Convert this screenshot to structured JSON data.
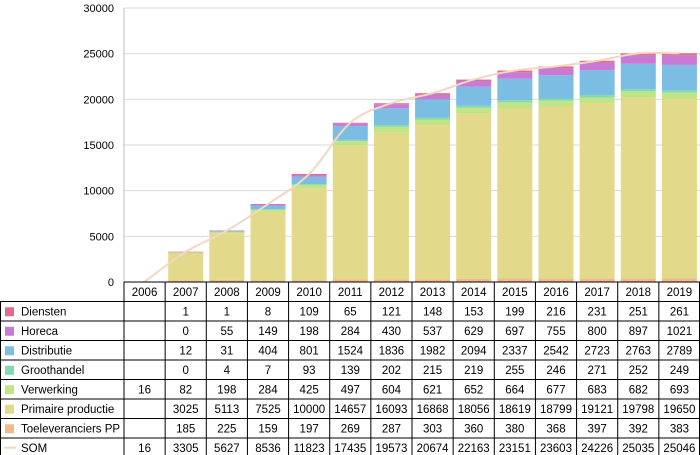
{
  "chart_data": {
    "type": "bar",
    "stacked": true,
    "categories": [
      "2006",
      "2007",
      "2008",
      "2009",
      "2010",
      "2011",
      "2012",
      "2013",
      "2014",
      "2015",
      "2016",
      "2017",
      "2018",
      "2019"
    ],
    "ylim": [
      0,
      30000
    ],
    "yticks": [
      0,
      5000,
      10000,
      15000,
      20000,
      25000,
      30000
    ],
    "series": [
      {
        "name": "Diensten",
        "color": "#e06c8e",
        "values": [
          null,
          1,
          1,
          8,
          109,
          65,
          121,
          148,
          153,
          199,
          216,
          231,
          251,
          261
        ]
      },
      {
        "name": "Horeca",
        "color": "#c77ad6",
        "values": [
          null,
          0,
          55,
          149,
          198,
          284,
          430,
          537,
          629,
          697,
          755,
          800,
          897,
          1021
        ]
      },
      {
        "name": "Distributie",
        "color": "#7bbde3",
        "values": [
          null,
          12,
          31,
          404,
          801,
          1524,
          1836,
          1982,
          2094,
          2337,
          2542,
          2723,
          2763,
          2789
        ]
      },
      {
        "name": "Groothandel",
        "color": "#7fdcb0",
        "values": [
          null,
          0,
          4,
          7,
          93,
          139,
          202,
          215,
          219,
          255,
          246,
          271,
          252,
          249
        ]
      },
      {
        "name": "Verwerking",
        "color": "#c3e384",
        "values": [
          16,
          82,
          198,
          284,
          425,
          497,
          604,
          621,
          652,
          664,
          677,
          683,
          682,
          693
        ]
      },
      {
        "name": "Primaire productie",
        "color": "#e2d98b",
        "values": [
          null,
          3025,
          5113,
          7525,
          10000,
          14657,
          16093,
          16868,
          18056,
          18619,
          18799,
          19121,
          19798,
          19650
        ]
      },
      {
        "name": "Toeleveranciers PP",
        "color": "#f2b98c",
        "values": [
          null,
          185,
          225,
          159,
          197,
          269,
          287,
          303,
          360,
          380,
          368,
          397,
          392,
          383
        ]
      }
    ],
    "total": {
      "name": "SOM",
      "type": "line",
      "color": "#f2d7c2",
      "values": [
        16,
        3305,
        5627,
        8536,
        11823,
        17435,
        19573,
        20674,
        22163,
        23151,
        23603,
        24226,
        25035,
        25046
      ]
    },
    "grid": true,
    "legend": "table-below"
  }
}
